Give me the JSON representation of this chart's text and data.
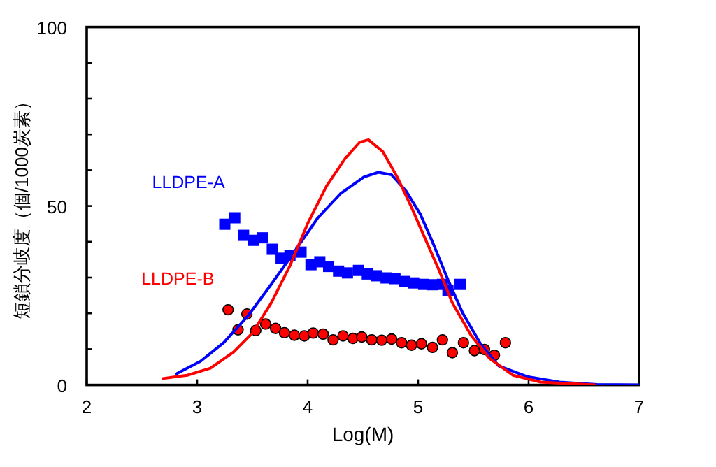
{
  "chart_data": {
    "type": "line",
    "xlabel": "Log(M)",
    "ylabel": "短鎖分岐度（個/1000炭素）",
    "xlim": [
      2,
      7
    ],
    "ylim": [
      0,
      100
    ],
    "xticks": [
      2,
      3,
      4,
      5,
      6,
      7
    ],
    "yticks": [
      0,
      {
        "value": 10,
        "label": null
      },
      {
        "value": 20,
        "label": null
      },
      {
        "value": 30,
        "label": null
      },
      {
        "value": 40,
        "label": null
      },
      50,
      {
        "value": 60,
        "label": null
      },
      {
        "value": 70,
        "label": null
      },
      {
        "value": 80,
        "label": null
      },
      {
        "value": 90,
        "label": null
      },
      100
    ],
    "series": [
      {
        "name": "LLDPE-A",
        "type": "scatter",
        "marker": "square",
        "color": "#0000ff",
        "x": [
          3.25,
          3.34,
          3.42,
          3.51,
          3.59,
          3.68,
          3.76,
          3.84,
          3.94,
          4.03,
          4.11,
          4.19,
          4.28,
          4.36,
          4.46,
          4.54,
          4.62,
          4.71,
          4.79,
          4.88,
          4.96,
          5.05,
          5.13,
          5.22,
          5.27,
          5.38
        ],
        "values": [
          44.9,
          46.7,
          41.8,
          40.4,
          41.1,
          37.9,
          35.4,
          36.2,
          37.1,
          33.6,
          34.4,
          33.1,
          31.8,
          31.3,
          32.0,
          31.0,
          30.5,
          29.9,
          29.7,
          28.9,
          28.5,
          28.1,
          28.0,
          28.1,
          26.3,
          28.1
        ]
      },
      {
        "name": "LLDPE-B",
        "type": "scatter",
        "marker": "circle",
        "color": "#ff0000",
        "x": [
          3.28,
          3.37,
          3.45,
          3.53,
          3.62,
          3.71,
          3.79,
          3.88,
          3.97,
          4.05,
          4.14,
          4.23,
          4.32,
          4.41,
          4.49,
          4.58,
          4.67,
          4.76,
          4.85,
          4.94,
          5.03,
          5.13,
          5.22,
          5.31,
          5.41,
          5.51,
          5.6,
          5.69,
          5.79
        ],
        "values": [
          21.0,
          15.4,
          19.8,
          15.2,
          17.0,
          15.8,
          14.6,
          13.9,
          13.7,
          14.5,
          14.2,
          12.6,
          13.7,
          13.0,
          13.4,
          12.6,
          12.5,
          12.8,
          11.8,
          11.1,
          11.5,
          10.5,
          12.6,
          9.0,
          11.8,
          9.6,
          9.9,
          8.3,
          11.8
        ]
      },
      {
        "type": "line",
        "marker": "none",
        "color": "#0000ff",
        "x": [
          2.81,
          3.03,
          3.24,
          3.46,
          3.67,
          3.88,
          4.09,
          4.3,
          4.51,
          4.64,
          4.76,
          4.89,
          5.02,
          5.14,
          5.27,
          5.4,
          5.57,
          5.73,
          5.99,
          6.28,
          6.62,
          7.0
        ],
        "values": [
          3.1,
          6.6,
          11.8,
          19.3,
          28.1,
          37.2,
          46.6,
          53.5,
          58.1,
          59.4,
          58.7,
          54.2,
          47.7,
          39.2,
          29.4,
          20.3,
          11.2,
          5.3,
          2.3,
          0.8,
          0.1,
          0
        ]
      },
      {
        "type": "line",
        "marker": "none",
        "color": "#ff0000",
        "x": [
          2.69,
          2.91,
          3.12,
          3.33,
          3.5,
          3.67,
          3.84,
          4.0,
          4.17,
          4.34,
          4.47,
          4.55,
          4.68,
          4.81,
          4.93,
          5.06,
          5.19,
          5.31,
          5.48,
          5.65,
          5.86,
          6.11,
          6.6
        ],
        "values": [
          1.8,
          2.7,
          4.7,
          9.2,
          14.5,
          22.9,
          33.3,
          45.1,
          55.5,
          63.3,
          67.8,
          68.5,
          65.2,
          58.1,
          50.3,
          41.1,
          32.0,
          22.9,
          13.8,
          7.3,
          2.7,
          0.8,
          0
        ]
      }
    ]
  }
}
